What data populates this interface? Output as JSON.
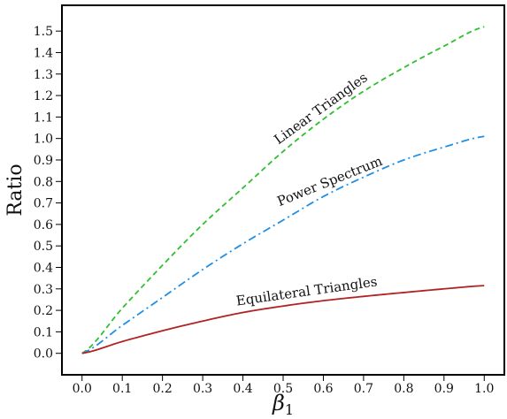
{
  "chart_data": {
    "type": "line",
    "title": "",
    "xlabel": "β",
    "xlabel_subscript": "1",
    "ylabel": "Ratio",
    "xlim": [
      -0.05,
      1.05
    ],
    "ylim": [
      -0.1,
      1.62
    ],
    "xticks": [
      0.0,
      0.1,
      0.2,
      0.3,
      0.4,
      0.5,
      0.6,
      0.7,
      0.8,
      0.9,
      1.0
    ],
    "xtick_labels": [
      "0.0",
      "0.1",
      "0.2",
      "0.3",
      "0.4",
      "0.5",
      "0.6",
      "0.7",
      "0.8",
      "0.9",
      "1.0"
    ],
    "yticks": [
      0.0,
      0.1,
      0.2,
      0.3,
      0.4,
      0.5,
      0.6,
      0.7,
      0.8,
      0.9,
      1.0,
      1.1,
      1.2,
      1.3,
      1.4,
      1.5
    ],
    "ytick_labels": [
      "0.0",
      "0.1",
      "0.2",
      "0.3",
      "0.4",
      "0.5",
      "0.6",
      "0.7",
      "0.8",
      "0.9",
      "1.0",
      "1.1",
      "1.2",
      "1.3",
      "1.4",
      "1.5"
    ],
    "grid": false,
    "x": [
      0.0,
      0.1,
      0.2,
      0.3,
      0.4,
      0.5,
      0.6,
      0.7,
      0.8,
      0.9,
      1.0
    ],
    "series": [
      {
        "name": "Linear Triangles",
        "color": "#2fbf2f",
        "dash": "dashed",
        "values": [
          0.0,
          0.21,
          0.41,
          0.6,
          0.77,
          0.94,
          1.09,
          1.22,
          1.33,
          1.43,
          1.52
        ]
      },
      {
        "name": "Power Spectrum",
        "color": "#1f8fe6",
        "dash": "dashdot",
        "values": [
          0.0,
          0.13,
          0.26,
          0.39,
          0.51,
          0.62,
          0.73,
          0.82,
          0.9,
          0.96,
          1.01
        ]
      },
      {
        "name": "Equilateral Triangles",
        "color": "#b22222",
        "dash": "solid",
        "values": [
          0.0,
          0.055,
          0.105,
          0.15,
          0.19,
          0.22,
          0.245,
          0.265,
          0.283,
          0.3,
          0.315
        ]
      }
    ],
    "annotations": [
      {
        "text": "Linear Triangles",
        "series": 0,
        "at_x": 0.6,
        "angle": -36
      },
      {
        "text": "Power Spectrum",
        "series": 1,
        "at_x": 0.62,
        "angle": -22
      },
      {
        "text": "Equilateral Triangles",
        "series": 2,
        "at_x": 0.56,
        "angle": -8
      }
    ]
  }
}
